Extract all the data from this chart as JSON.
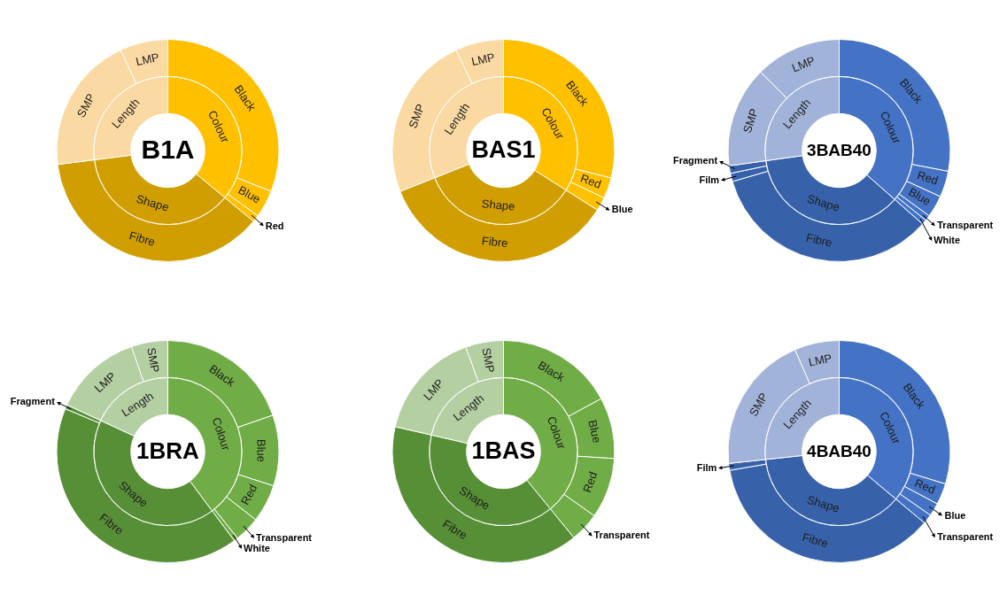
{
  "chart_data": [
    {
      "type": "donut",
      "title": "B1A",
      "categories": [
        "Colour",
        "Shape",
        "Length"
      ],
      "values": [
        36,
        37,
        27
      ],
      "colors": [
        "#ffc000",
        "#d09e00",
        "#fbd9a2"
      ]
    },
    {
      "type": "donut",
      "categories": [
        "Black",
        "Blue",
        "Red",
        "Fibre",
        "SMP",
        "LMP"
      ],
      "values": [
        31,
        4,
        1,
        37,
        20,
        7
      ],
      "colors": [
        "#ffc000",
        "#ffc000",
        "#ffc000",
        "#d09e00",
        "#fbd9a2",
        "#fbd9a2"
      ]
    },
    {
      "type": "donut",
      "title": "BAS1",
      "categories": [
        "Colour",
        "Shape",
        "Length"
      ],
      "values": [
        34,
        35,
        31
      ],
      "colors": [
        "#ffc000",
        "#d09e00",
        "#fbd9a2"
      ]
    },
    {
      "type": "donut",
      "categories": [
        "Black",
        "Red",
        "Blue",
        "Fibre",
        "SMP",
        "LMP"
      ],
      "values": [
        29,
        3,
        2,
        35,
        24,
        7
      ],
      "colors": [
        "#ffc000",
        "#ffc000",
        "#ffc000",
        "#d09e00",
        "#fbd9a2",
        "#fbd9a2"
      ]
    },
    {
      "type": "donut",
      "title": "3BAB40",
      "categories": [
        "Colour",
        "Shape",
        "Length"
      ],
      "values": [
        36.5,
        36.3,
        27.2
      ],
      "colors": [
        "#4472c4",
        "#3762aa",
        "#a2b3da"
      ]
    },
    {
      "type": "donut",
      "categories": [
        "Black",
        "Red",
        "Blue",
        "Transparent",
        "White",
        "Fibre",
        "Film",
        "Fragment",
        "SMP",
        "LMP"
      ],
      "values": [
        28,
        3.8,
        3.2,
        0.8,
        0.7,
        34,
        1.2,
        1.1,
        14.7,
        12.5
      ],
      "colors": [
        "#4472c4",
        "#4472c4",
        "#4472c4",
        "#4472c4",
        "#4472c4",
        "#3762aa",
        "#3762aa",
        "#3762aa",
        "#a2b3da",
        "#a2b3da"
      ]
    },
    {
      "type": "donut",
      "title": "1BRA",
      "categories": [
        "Colour",
        "Shape",
        "Length"
      ],
      "values": [
        39.8,
        42.1,
        18.1
      ],
      "colors": [
        "#70ad47",
        "#578f37",
        "#b4cfa1"
      ]
    },
    {
      "type": "donut",
      "categories": [
        "Black",
        "Blue",
        "Red",
        "Transparent",
        "White",
        "Fibre",
        "Fragment",
        "LMP",
        "SMP"
      ],
      "values": [
        19.7,
        10.3,
        5.5,
        3.7,
        0.6,
        41.5,
        0.6,
        12.8,
        5.3
      ],
      "colors": [
        "#70ad47",
        "#70ad47",
        "#70ad47",
        "#70ad47",
        "#70ad47",
        "#578f37",
        "#578f37",
        "#b4cfa1",
        "#b4cfa1"
      ]
    },
    {
      "type": "donut",
      "title": "1BAS",
      "categories": [
        "Colour",
        "Shape",
        "Length"
      ],
      "values": [
        39.1,
        39.5,
        21.4
      ],
      "colors": [
        "#70ad47",
        "#578f37",
        "#b4cfa1"
      ]
    },
    {
      "type": "donut",
      "categories": [
        "Black",
        "Blue",
        "Red",
        "Transparent",
        "Fibre",
        "LMP",
        "SMP"
      ],
      "values": [
        17.1,
        8.9,
        8.8,
        4.3,
        39.5,
        15.9,
        5.5
      ],
      "colors": [
        "#70ad47",
        "#70ad47",
        "#70ad47",
        "#70ad47",
        "#578f37",
        "#b4cfa1",
        "#b4cfa1"
      ]
    },
    {
      "type": "donut",
      "title": "4BAB40",
      "categories": [
        "Colour",
        "Shape",
        "Length"
      ],
      "values": [
        36.1,
        37.2,
        26.7
      ],
      "colors": [
        "#4472c4",
        "#3762aa",
        "#a2b3da"
      ]
    },
    {
      "type": "donut",
      "categories": [
        "Black",
        "Red",
        "Blue",
        "Transparent",
        "Fibre",
        "Film",
        "SMP",
        "LMP"
      ],
      "values": [
        29.7,
        3.1,
        1.9,
        1.4,
        36.2,
        1.0,
        20.2,
        6.5
      ],
      "colors": [
        "#4472c4",
        "#4472c4",
        "#4472c4",
        "#4472c4",
        "#3762aa",
        "#3762aa",
        "#a2b3da",
        "#a2b3da"
      ]
    }
  ]
}
